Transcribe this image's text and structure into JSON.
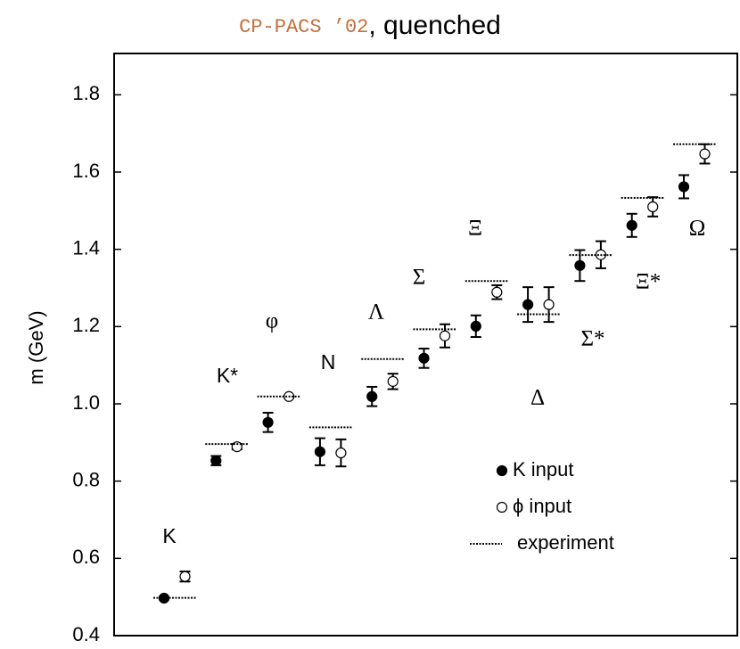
{
  "chart_data": {
    "type": "errorbar",
    "title": {
      "source": "CP-PACS ’02",
      "text": ", quenched"
    },
    "ylabel": "m (GeV)",
    "ylim": [
      0.4,
      1.9
    ],
    "yticks": [
      0.4,
      0.6,
      0.8,
      {
        "value": 1,
        "label": "1.0"
      },
      1.2,
      1.4,
      1.6,
      1.8
    ],
    "categories": [
      "K",
      "K*",
      "φ",
      "N",
      "Λ",
      "Σ",
      "Ξ",
      "Δ",
      "Σ*",
      "Ξ*",
      "Ω"
    ],
    "legend": "lower right",
    "series": [
      {
        "name": "K input",
        "marker": "filled",
        "color": "#000000",
        "values": [
          0.497,
          0.853,
          0.952,
          0.876,
          1.019,
          1.118,
          1.201,
          1.257,
          1.358,
          1.462,
          1.562
        ],
        "errors": [
          0.003,
          0.012,
          0.025,
          0.035,
          0.025,
          0.025,
          0.028,
          0.045,
          0.04,
          0.03,
          0.03
        ]
      },
      {
        "name": "ϕ input",
        "marker": "open",
        "color": "#000000",
        "values": [
          0.553,
          0.889,
          1.019,
          0.873,
          1.058,
          1.176,
          1.289,
          1.257,
          1.386,
          1.51,
          1.647
        ],
        "errors": [
          0.013,
          0.007,
          0.002,
          0.035,
          0.02,
          0.03,
          0.018,
          0.045,
          0.035,
          0.025,
          0.025
        ]
      },
      {
        "name": "experiment",
        "marker": "dashed",
        "color": "#000000",
        "values": [
          0.4977,
          0.896,
          1.019,
          0.939,
          1.116,
          1.193,
          1.318,
          1.232,
          1.385,
          1.533,
          1.672
        ]
      }
    ]
  }
}
